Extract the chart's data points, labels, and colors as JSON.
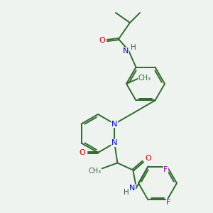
{
  "bg_color": "#eff3ef",
  "bond_color": "#2d6b2d",
  "atom_colors": {
    "O": "#cc0000",
    "N": "#0000cc",
    "F": "#9900bb",
    "H": "#2d6b2d",
    "C": "#2d6b2d"
  }
}
